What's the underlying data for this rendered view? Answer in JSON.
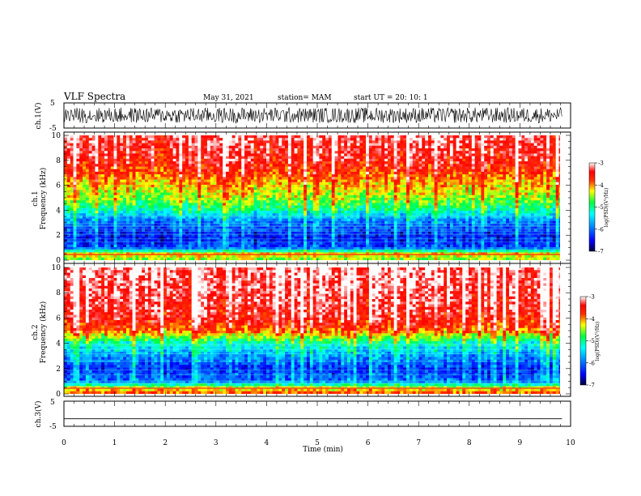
{
  "header": {
    "title": "VLF Spectra",
    "date": "May 31, 2021",
    "station": "station= MAM",
    "start": "start  UT =   20: 10: 1"
  },
  "chart_data": [
    {
      "type": "line",
      "name": "ch1-waveform",
      "ylabel": "ch.1(V)",
      "ylim": [
        -5,
        5
      ],
      "yticks": [
        "5",
        "-5"
      ],
      "description_values": {
        "amplitude_range_V": [
          -3.0,
          3.2
        ]
      }
    },
    {
      "type": "heatmap",
      "name": "ch1-spectrogram",
      "ylabel_line1": "ch.1",
      "ylabel_line2": "Frequency  (kHz)",
      "ylim": [
        0,
        10
      ],
      "yticks": [
        "0",
        "2",
        "4",
        "6",
        "8",
        "10"
      ],
      "colorbar": {
        "label": "log(PSD)(V²/Hz)",
        "range": [
          -7,
          -3
        ],
        "ticks": [
          "-3",
          "-4",
          "-5",
          "-6",
          "-7"
        ]
      },
      "profile_freq_khz": [
        0,
        0.5,
        1,
        2,
        3,
        3.5,
        4,
        4.5,
        5,
        6,
        7,
        8,
        10
      ],
      "profile_log_psd": [
        -4.6,
        -4.2,
        -6.2,
        -6.4,
        -6.0,
        -5.6,
        -5.1,
        -4.8,
        -4.5,
        -4.2,
        -3.8,
        -3.5,
        -3.3
      ]
    },
    {
      "type": "heatmap",
      "name": "ch2-spectrogram",
      "ylabel_line1": "ch.2",
      "ylabel_line2": "Frequency  (kHz)",
      "ylim": [
        0,
        10
      ],
      "yticks": [
        "0",
        "2",
        "4",
        "6",
        "8",
        "10"
      ],
      "colorbar": {
        "label": "log(PSD)(V²/Hz)",
        "range": [
          -7,
          -3
        ],
        "ticks": [
          "-3",
          "-4",
          "-5",
          "-6",
          "-7"
        ]
      },
      "profile_freq_khz": [
        0,
        0.5,
        1,
        2,
        3,
        4,
        4.5,
        5,
        6,
        8,
        10
      ],
      "profile_log_psd": [
        -3.8,
        -4.4,
        -6.0,
        -6.3,
        -5.8,
        -5.2,
        -4.6,
        -3.9,
        -3.5,
        -3.3,
        -3.2
      ]
    },
    {
      "type": "line",
      "name": "ch3-waveform",
      "ylabel": "ch.3(V)",
      "ylim": [
        -5,
        5
      ],
      "yticks": [
        "5",
        "-5"
      ],
      "series": [
        {
          "x": [
            0,
            9.83
          ],
          "y": [
            -2,
            -2
          ]
        }
      ]
    }
  ],
  "xaxis": {
    "label": "Time  (min)",
    "range": [
      0,
      10
    ],
    "data_end": 9.83,
    "ticks": [
      "0",
      "1",
      "2",
      "3",
      "4",
      "5",
      "6",
      "7",
      "8",
      "9",
      "10"
    ]
  },
  "colors": {
    "scale": [
      "#00005a",
      "#0000ff",
      "#00ffff",
      "#00ff00",
      "#ffff00",
      "#ff0000",
      "#ffffff"
    ]
  }
}
